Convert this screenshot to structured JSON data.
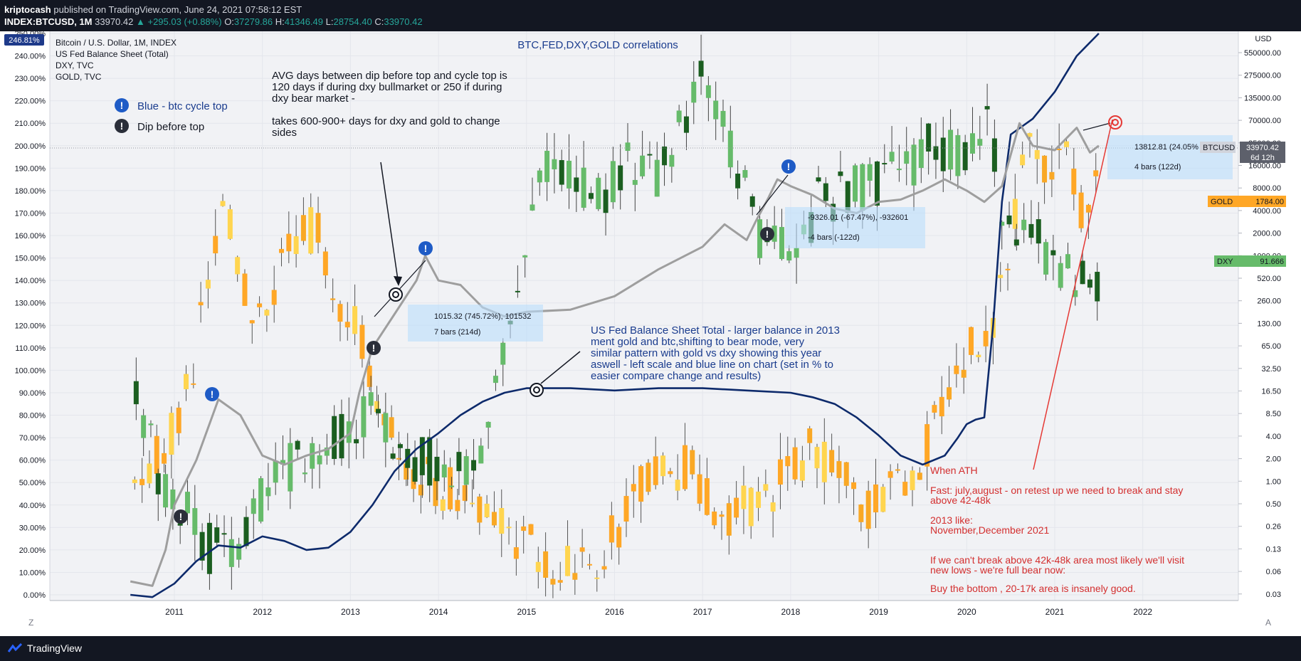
{
  "header": {
    "author": "kriptocash",
    "published": "published on TradingView.com, June 24, 2021 07:58:12 EST",
    "symbol": "INDEX:BTCUSD, 1M",
    "price": "33970.42",
    "change": "▲ +295.03 (+0.88%)",
    "ohlc_o_label": "O:",
    "ohlc_o": "37279.86",
    "ohlc_h_label": "H:",
    "ohlc_h": "41346.49",
    "ohlc_l_label": "L:",
    "ohlc_l": "28754.40",
    "ohlc_c_label": "C:",
    "ohlc_c": "33970.42"
  },
  "legend": {
    "items": [
      "Bitcoin / U.S. Dollar, 1M, INDEX",
      "US Fed Balance Sheet (Total)",
      "DXY, TVC",
      "GOLD, TVC"
    ],
    "percent_badge": "246.81%",
    "cycle_top": "Blue - btc cycle top",
    "dip": "Dip before top"
  },
  "title": "BTC,FED,DXY,GOLD correlations",
  "notes": {
    "avg": [
      "AVG days between dip before top and cycle top is",
      "120 days if during dxy bullmarket  or 250  if during",
      "dxy bear market   -",
      "",
      "takes  600-900+ days for dxy and gold to change",
      "sides"
    ],
    "fed": [
      "US Fed Balance Sheet Total - larger balance in 2013",
      "ment gold and btc,shifting to bear mode, very",
      "similar pattern with gold vs dxy showing this year",
      "aswell - left scale and blue line on chart (set in % to",
      "easier compare change and results)"
    ],
    "ath": [
      "When ATH",
      "",
      "Fast: july,august - on retest up we need to break and stay",
      "above 42-48k",
      "",
      "2013 like:",
      "November,December 2021",
      "",
      "If we can't break above 42k-48k area most likely we'll visit",
      "new lows - we're full bear now:",
      "",
      "Buy the bottom ,  20-17k area is insanely good."
    ]
  },
  "measures": [
    {
      "line1": "1015.32 (745.72%), 101532",
      "line2": "7 bars (214d)"
    },
    {
      "line1": "-9326.01 (-67.47%), -932601",
      "line2": "-4 bars (-122d)"
    },
    {
      "line1": "13812.81 (24.05%",
      "line2": "4 bars (122d)"
    }
  ],
  "price_tags": {
    "btc_label": "BTCUSD",
    "btc_value": "33970.42",
    "btc_countdown": "6d 12h",
    "gold_label": "GOLD",
    "gold_value": "1784.00",
    "dxy_label": "DXY",
    "dxy_value": "91.666"
  },
  "bottom": {
    "brand": "TradingView",
    "zoom_left": "Z",
    "auto": "A"
  },
  "colors": {
    "btc_up": "#f9a825",
    "btc_up_light": "#ffd54f",
    "gold_down": "#ffa726",
    "dxy_up": "#66bb6a",
    "dxy_down": "#1b5e20",
    "fed_line": "#0d2a6b",
    "dxy_line": "#9e9e9e",
    "annotation_red": "#e53935",
    "note_blue": "#1a3c8e",
    "badge_blue": "#1e5bc6"
  },
  "chart_data": {
    "type": "line",
    "title": "BTC,FED,DXY,GOLD correlations",
    "x_ticks": [
      "2011",
      "2012",
      "2013",
      "2014",
      "2015",
      "2016",
      "2017",
      "2018",
      "2019",
      "2020",
      "2021",
      "2022"
    ],
    "left_axis": {
      "ylim": [
        0,
        250
      ],
      "unit": "%",
      "ticks": [
        "0.00%",
        "10.00%",
        "20.00%",
        "30.00%",
        "40.00%",
        "50.00%",
        "60.00%",
        "70.00%",
        "80.00%",
        "90.00%",
        "100.00%",
        "110.00%",
        "120.00%",
        "130.00%",
        "140.00%",
        "150.00%",
        "160.00%",
        "170.00%",
        "180.00%",
        "190.00%",
        "200.00%",
        "210.00%",
        "220.00%",
        "230.00%",
        "240.00%",
        "250.00%"
      ]
    },
    "right_axis": {
      "scale": "log",
      "unit": "USD",
      "ticks": [
        "550000.00",
        "275000.00",
        "135000.00",
        "70000.00",
        "35000.00",
        "16000.00",
        "8000.00",
        "4000.00",
        "2000.00",
        "1000.00",
        "520.00",
        "260.00",
        "130.00",
        "65.00",
        "32.50",
        "16.50",
        "8.50",
        "4.00",
        "2.00",
        "1.00",
        "0.50",
        "0.26",
        "0.13",
        "0.06",
        "0.03"
      ]
    },
    "series": [
      {
        "name": "US Fed Balance Sheet (Total)",
        "x": [
          2010.5,
          2010.75,
          2011.0,
          2011.25,
          2011.5,
          2011.75,
          2012.0,
          2012.25,
          2012.5,
          2012.75,
          2013.0,
          2013.25,
          2013.5,
          2013.75,
          2014.0,
          2014.25,
          2014.5,
          2014.75,
          2015.0,
          2015.5,
          2016.0,
          2016.5,
          2017.0,
          2017.5,
          2018.0,
          2018.25,
          2018.5,
          2018.75,
          2019.0,
          2019.25,
          2019.5,
          2019.75,
          2019.9,
          2020.0,
          2020.1,
          2020.2,
          2020.3,
          2020.4,
          2020.5,
          2020.75,
          2021.0,
          2021.25,
          2021.5
        ],
        "values": [
          0,
          -1,
          5,
          15,
          22,
          21,
          26,
          24,
          20,
          21,
          28,
          40,
          55,
          65,
          72,
          80,
          86,
          90,
          92,
          92,
          91,
          92,
          92,
          91,
          90,
          88,
          85,
          79,
          71,
          62,
          58,
          62,
          70,
          76,
          78,
          79,
          120,
          175,
          205,
          212,
          224,
          240,
          250
        ]
      },
      {
        "name": "DXY, TVC",
        "x": [
          2010.5,
          2010.75,
          2010.9,
          2011.0,
          2011.25,
          2011.5,
          2011.75,
          2012.0,
          2012.25,
          2012.5,
          2012.75,
          2013.0,
          2013.1,
          2013.25,
          2013.5,
          2013.75,
          2013.85,
          2014.0,
          2014.25,
          2014.5,
          2014.75,
          2015.0,
          2015.5,
          2016.0,
          2016.5,
          2017.0,
          2017.25,
          2017.5,
          2017.6,
          2017.75,
          2017.85,
          2018.0,
          2018.25,
          2018.5,
          2018.75,
          2019.0,
          2019.25,
          2019.5,
          2019.75,
          2020.0,
          2020.2,
          2020.4,
          2020.6,
          2020.75,
          2021.0,
          2021.25,
          2021.4,
          2021.5
        ],
        "values": [
          6,
          4,
          20,
          40,
          60,
          87,
          80,
          62,
          58,
          62,
          65,
          72,
          90,
          110,
          125,
          140,
          151,
          140,
          138,
          128,
          124,
          126,
          127,
          133,
          145,
          155,
          165,
          158,
          166,
          177,
          185,
          182,
          178,
          172,
          170,
          175,
          176,
          180,
          185,
          180,
          175,
          182,
          210,
          200,
          198,
          208,
          197,
          200
        ]
      }
    ],
    "candles_btc_pct_approx": "log-scaled candles, peaks ~250% (2013 top, 2017 top, 2021 top)",
    "annotations": [
      "Blue - btc cycle top",
      "Dip before top"
    ]
  }
}
